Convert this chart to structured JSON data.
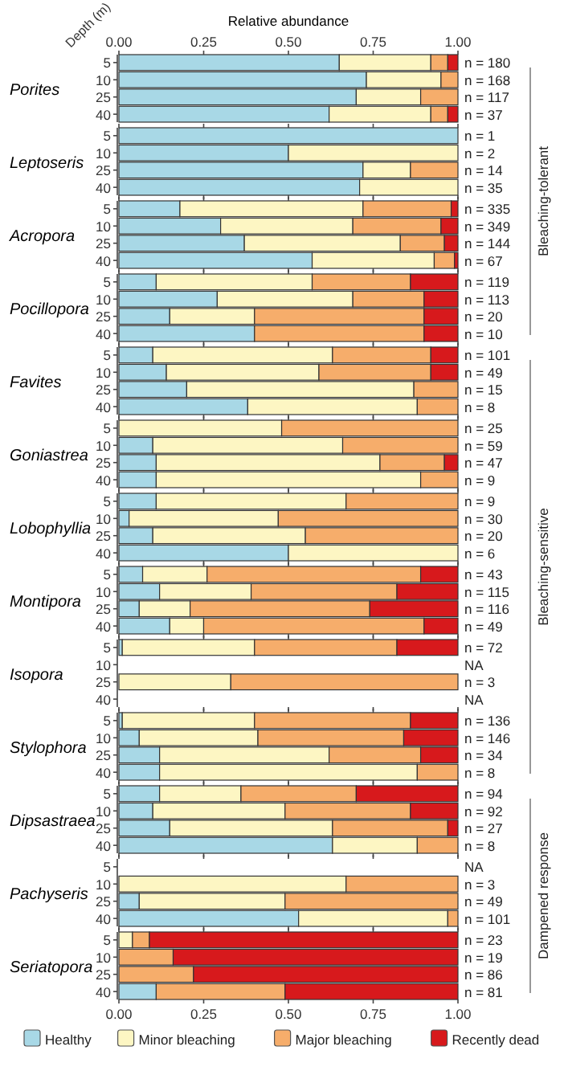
{
  "chart_data": [
    {
      "type": "bar",
      "orientation": "horizontal",
      "stacked": true,
      "title": "Porites",
      "ylabel": "Depth (m)",
      "xlabel": "Relative abundance",
      "categories": [
        "5",
        "10",
        "25",
        "40"
      ],
      "xlim": [
        0,
        1
      ],
      "xticks": [
        {
          "value": 0,
          "label": "0.00"
        },
        {
          "value": 0.25,
          "label": "0.25"
        },
        {
          "value": 0.5,
          "label": "0.50"
        },
        {
          "value": 0.75,
          "label": "0.75"
        },
        {
          "value": 1,
          "label": "1.00"
        }
      ],
      "annotations": [
        "Bleaching-tolerant"
      ],
      "value_labels": [
        "n = 180",
        "n = 168",
        "n = 117",
        "n = 37"
      ],
      "series": [
        {
          "color": "#a8d8e6",
          "values": [
            0.65,
            0.73,
            0.7,
            0.62
          ]
        },
        {
          "color": "#fdf6c3",
          "values": [
            0.27,
            0.22,
            0.19,
            0.3
          ]
        },
        {
          "color": "#f6ad6b",
          "values": [
            0.05,
            0.05,
            0.11,
            0.05
          ]
        },
        {
          "color": "#d7191c",
          "values": [
            0.03,
            0,
            0,
            0.03
          ]
        }
      ]
    },
    {
      "type": "bar",
      "orientation": "horizontal",
      "stacked": true,
      "title": "Leptoseris",
      "categories": [
        "5",
        "10",
        "25",
        "40"
      ],
      "xlim": [
        0,
        1
      ],
      "xticks": [
        0,
        0.25,
        0.5,
        0.75,
        1
      ],
      "tick_labels": "y",
      "value_labels": [
        "n = 1",
        "n = 2",
        "n = 14",
        "n = 35"
      ],
      "series": [
        {
          "color": "#a8d8e6",
          "values": [
            1,
            0.5,
            0.72,
            0.71
          ]
        },
        {
          "color": "#fdf6c3",
          "values": [
            0,
            0.5,
            0.14,
            0.29
          ]
        },
        {
          "color": "#f6ad6b",
          "values": [
            0,
            0,
            0.14,
            0
          ]
        },
        {
          "color": "#d7191c",
          "values": [
            0,
            0,
            0,
            0
          ]
        }
      ]
    },
    {
      "type": "bar",
      "orientation": "horizontal",
      "stacked": true,
      "title": "Acropora",
      "categories": [
        "5",
        "10",
        "25",
        "40"
      ],
      "xlim": [
        0,
        1
      ],
      "xticks": [
        0,
        0.25,
        0.5,
        0.75,
        1
      ],
      "tick_labels": "y",
      "value_labels": [
        "n = 335",
        "n = 349",
        "n = 144",
        "n = 67"
      ],
      "series": [
        {
          "color": "#a8d8e6",
          "values": [
            0.18,
            0.3,
            0.37,
            0.57
          ]
        },
        {
          "color": "#fdf6c3",
          "values": [
            0.54,
            0.39,
            0.46,
            0.36
          ]
        },
        {
          "color": "#f6ad6b",
          "values": [
            0.26,
            0.26,
            0.13,
            0.06
          ]
        },
        {
          "color": "#d7191c",
          "values": [
            0.02,
            0.05,
            0.04,
            0.01
          ]
        }
      ]
    },
    {
      "type": "bar",
      "orientation": "horizontal",
      "stacked": true,
      "title": "Pocillopora",
      "categories": [
        "5",
        "10",
        "25",
        "40"
      ],
      "xlim": [
        0,
        1
      ],
      "xticks": [
        0,
        0.25,
        0.5,
        0.75,
        1
      ],
      "tick_labels": "y",
      "value_labels": [
        "n = 119",
        "n = 113",
        "n = 20",
        "n = 10"
      ],
      "series": [
        {
          "color": "#a8d8e6",
          "values": [
            0.11,
            0.29,
            0.15,
            0.4
          ]
        },
        {
          "color": "#fdf6c3",
          "values": [
            0.46,
            0.4,
            0.25,
            0
          ]
        },
        {
          "color": "#f6ad6b",
          "values": [
            0.29,
            0.21,
            0.5,
            0.5
          ]
        },
        {
          "color": "#d7191c",
          "values": [
            0.14,
            0.1,
            0.1,
            0.1
          ]
        }
      ]
    },
    {
      "type": "bar",
      "orientation": "horizontal",
      "stacked": true,
      "title": "Favites",
      "categories": [
        "5",
        "10",
        "25",
        "40"
      ],
      "xlim": [
        0,
        1
      ],
      "xticks": [
        0,
        0.25,
        0.5,
        0.75,
        1
      ],
      "tick_labels": "y",
      "annotations": [
        "Bleaching-sensitive"
      ],
      "value_labels": [
        "n = 101",
        "n = 49",
        "n = 15",
        "n = 8"
      ],
      "series": [
        {
          "color": "#a8d8e6",
          "values": [
            0.1,
            0.14,
            0.2,
            0.38
          ]
        },
        {
          "color": "#fdf6c3",
          "values": [
            0.53,
            0.45,
            0.67,
            0.5
          ]
        },
        {
          "color": "#f6ad6b",
          "values": [
            0.29,
            0.33,
            0.13,
            0.12
          ]
        },
        {
          "color": "#d7191c",
          "values": [
            0.08,
            0.08,
            0,
            0
          ]
        }
      ]
    },
    {
      "type": "bar",
      "orientation": "horizontal",
      "stacked": true,
      "title": "Goniastrea",
      "categories": [
        "5",
        "10",
        "25",
        "40"
      ],
      "xlim": [
        0,
        1
      ],
      "xticks": [
        0,
        0.25,
        0.5,
        0.75,
        1
      ],
      "tick_labels": "y",
      "value_labels": [
        "n = 25",
        "n = 59",
        "n = 47",
        "n = 9"
      ],
      "series": [
        {
          "color": "#a8d8e6",
          "values": [
            0,
            0.1,
            0.11,
            0.11
          ]
        },
        {
          "color": "#fdf6c3",
          "values": [
            0.48,
            0.56,
            0.66,
            0.78
          ]
        },
        {
          "color": "#f6ad6b",
          "values": [
            0.52,
            0.34,
            0.19,
            0.11
          ]
        },
        {
          "color": "#d7191c",
          "values": [
            0,
            0,
            0.04,
            0
          ]
        }
      ]
    },
    {
      "type": "bar",
      "orientation": "horizontal",
      "stacked": true,
      "title": "Lobophyllia",
      "categories": [
        "5",
        "10",
        "25",
        "40"
      ],
      "xlim": [
        0,
        1
      ],
      "xticks": [
        0,
        0.25,
        0.5,
        0.75,
        1
      ],
      "tick_labels": "y",
      "value_labels": [
        "n = 9",
        "n = 30",
        "n = 20",
        "n = 6"
      ],
      "series": [
        {
          "color": "#a8d8e6",
          "values": [
            0.11,
            0.03,
            0.1,
            0.5
          ]
        },
        {
          "color": "#fdf6c3",
          "values": [
            0.56,
            0.44,
            0.45,
            0.5
          ]
        },
        {
          "color": "#f6ad6b",
          "values": [
            0.33,
            0.53,
            0.45,
            0
          ]
        },
        {
          "color": "#d7191c",
          "values": [
            0,
            0,
            0,
            0
          ]
        }
      ]
    },
    {
      "type": "bar",
      "orientation": "horizontal",
      "stacked": true,
      "title": "Montipora",
      "categories": [
        "5",
        "10",
        "25",
        "40"
      ],
      "xlim": [
        0,
        1
      ],
      "xticks": [
        0,
        0.25,
        0.5,
        0.75,
        1
      ],
      "tick_labels": "y",
      "value_labels": [
        "n = 43",
        "n = 115",
        "n = 116",
        "n = 49"
      ],
      "series": [
        {
          "color": "#a8d8e6",
          "values": [
            0.07,
            0.12,
            0.06,
            0.15
          ]
        },
        {
          "color": "#fdf6c3",
          "values": [
            0.19,
            0.27,
            0.15,
            0.1
          ]
        },
        {
          "color": "#f6ad6b",
          "values": [
            0.63,
            0.43,
            0.53,
            0.65
          ]
        },
        {
          "color": "#d7191c",
          "values": [
            0.11,
            0.18,
            0.26,
            0.1
          ]
        }
      ]
    },
    {
      "type": "bar",
      "orientation": "horizontal",
      "stacked": true,
      "title": "Isopora",
      "categories": [
        "5",
        "10",
        "25",
        "40"
      ],
      "xlim": [
        0,
        1
      ],
      "xticks": [
        0,
        0.25,
        0.5,
        0.75,
        1
      ],
      "tick_labels": "y",
      "value_labels": [
        "n = 72",
        "NA",
        "n = 3",
        "NA"
      ],
      "series": [
        {
          "color": "#a8d8e6",
          "values": [
            0.01,
            null,
            0,
            null
          ]
        },
        {
          "color": "#fdf6c3",
          "values": [
            0.39,
            null,
            0.33,
            null
          ]
        },
        {
          "color": "#f6ad6b",
          "values": [
            0.42,
            null,
            0.67,
            null
          ]
        },
        {
          "color": "#d7191c",
          "values": [
            0.18,
            null,
            0,
            null
          ]
        }
      ]
    },
    {
      "type": "bar",
      "orientation": "horizontal",
      "stacked": true,
      "title": "Stylophora",
      "categories": [
        "5",
        "10",
        "25",
        "40"
      ],
      "xlim": [
        0,
        1
      ],
      "xticks": [
        0,
        0.25,
        0.5,
        0.75,
        1
      ],
      "tick_labels": "y",
      "value_labels": [
        "n = 136",
        "n = 146",
        "n = 34",
        "n = 8"
      ],
      "series": [
        {
          "color": "#a8d8e6",
          "values": [
            0.01,
            0.06,
            0.12,
            0.12
          ]
        },
        {
          "color": "#fdf6c3",
          "values": [
            0.39,
            0.35,
            0.5,
            0.76
          ]
        },
        {
          "color": "#f6ad6b",
          "values": [
            0.46,
            0.43,
            0.27,
            0.12
          ]
        },
        {
          "color": "#d7191c",
          "values": [
            0.14,
            0.16,
            0.11,
            0
          ]
        }
      ]
    },
    {
      "type": "bar",
      "orientation": "horizontal",
      "stacked": true,
      "title": "Dipsastraea",
      "categories": [
        "5",
        "10",
        "25",
        "40"
      ],
      "xlim": [
        0,
        1
      ],
      "xticks": [
        0,
        0.25,
        0.5,
        0.75,
        1
      ],
      "tick_labels": "y",
      "annotations": [
        "Dampened response"
      ],
      "value_labels": [
        "n = 94",
        "n = 92",
        "n = 27",
        "n = 8"
      ],
      "series": [
        {
          "color": "#a8d8e6",
          "values": [
            0.12,
            0.1,
            0.15,
            0.63
          ]
        },
        {
          "color": "#fdf6c3",
          "values": [
            0.24,
            0.39,
            0.48,
            0.25
          ]
        },
        {
          "color": "#f6ad6b",
          "values": [
            0.34,
            0.37,
            0.34,
            0.12
          ]
        },
        {
          "color": "#d7191c",
          "values": [
            0.3,
            0.14,
            0.03,
            0
          ]
        }
      ]
    },
    {
      "type": "bar",
      "orientation": "horizontal",
      "stacked": true,
      "title": "Pachyseris",
      "categories": [
        "5",
        "10",
        "25",
        "40"
      ],
      "xlim": [
        0,
        1
      ],
      "xticks": [
        0,
        0.25,
        0.5,
        0.75,
        1
      ],
      "tick_labels": "y",
      "value_labels": [
        "NA",
        "n = 3",
        "n = 49",
        "n = 101"
      ],
      "series": [
        {
          "color": "#a8d8e6",
          "values": [
            null,
            0,
            0.06,
            0.53
          ]
        },
        {
          "color": "#fdf6c3",
          "values": [
            null,
            0.67,
            0.43,
            0.44
          ]
        },
        {
          "color": "#f6ad6b",
          "values": [
            null,
            0.33,
            0.51,
            0.03
          ]
        },
        {
          "color": "#d7191c",
          "values": [
            null,
            0,
            0,
            0
          ]
        }
      ]
    },
    {
      "type": "bar",
      "orientation": "horizontal",
      "stacked": true,
      "title": "Seriatopora",
      "categories": [
        "5",
        "10",
        "25",
        "40"
      ],
      "xlim": [
        0,
        1
      ],
      "xticks": [
        {
          "value": 0,
          "label": "0.00"
        },
        {
          "value": 0.25,
          "label": "0.25"
        },
        {
          "value": 0.5,
          "label": "0.50"
        },
        {
          "value": 0.75,
          "label": "0.75"
        },
        {
          "value": 1,
          "label": "1.00"
        }
      ],
      "legend": "bottom",
      "value_labels": [
        "n = 23",
        "n = 19",
        "n = 86",
        "n = 81"
      ],
      "series": [
        {
          "name": "Healthy",
          "color": "#a8d8e6",
          "values": [
            0,
            0,
            0,
            0.11
          ]
        },
        {
          "name": "Minor bleaching",
          "color": "#fdf6c3",
          "values": [
            0.04,
            0,
            0,
            0
          ]
        },
        {
          "name": "Major bleaching",
          "color": "#f6ad6b",
          "values": [
            0.05,
            0.16,
            0.22,
            0.38
          ]
        },
        {
          "name": "Recently dead",
          "color": "#d7191c",
          "values": [
            0.91,
            0.84,
            0.78,
            0.51
          ]
        }
      ]
    }
  ]
}
